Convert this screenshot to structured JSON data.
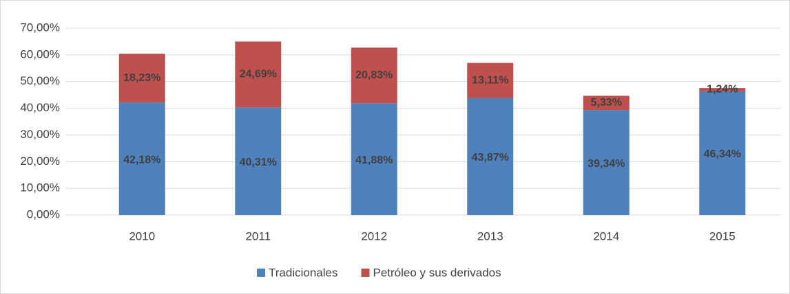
{
  "chart_data": {
    "type": "stacked_bar",
    "categories": [
      "2010",
      "2011",
      "2012",
      "2013",
      "2014",
      "2015"
    ],
    "series": [
      {
        "name": "Tradicionales",
        "color": "#4f81bd",
        "values": [
          42.18,
          40.31,
          41.88,
          43.87,
          39.34,
          46.34
        ],
        "value_labels": [
          "42,18%",
          "40,31%",
          "41,88%",
          "43,87%",
          "39,34%",
          "46,34%"
        ]
      },
      {
        "name": "Petróleo y sus derivados",
        "color": "#c0504d",
        "values": [
          18.23,
          24.69,
          20.83,
          13.11,
          5.33,
          1.24
        ],
        "value_labels": [
          "18,23%",
          "24,69%",
          "20,83%",
          "13,11%",
          "5,33%",
          "1,24%"
        ]
      }
    ],
    "ylim": [
      0,
      70
    ],
    "yticks": [
      {
        "value": 0,
        "label": "0,00%"
      },
      {
        "value": 10,
        "label": "10,00%"
      },
      {
        "value": 20,
        "label": "20,00%"
      },
      {
        "value": 30,
        "label": "30,00%"
      },
      {
        "value": 40,
        "label": "40,00%"
      },
      {
        "value": 50,
        "label": "50,00%"
      },
      {
        "value": 60,
        "label": "60,00%"
      },
      {
        "value": 70,
        "label": "70,00%"
      }
    ],
    "grid": true,
    "legend": "bottom"
  }
}
